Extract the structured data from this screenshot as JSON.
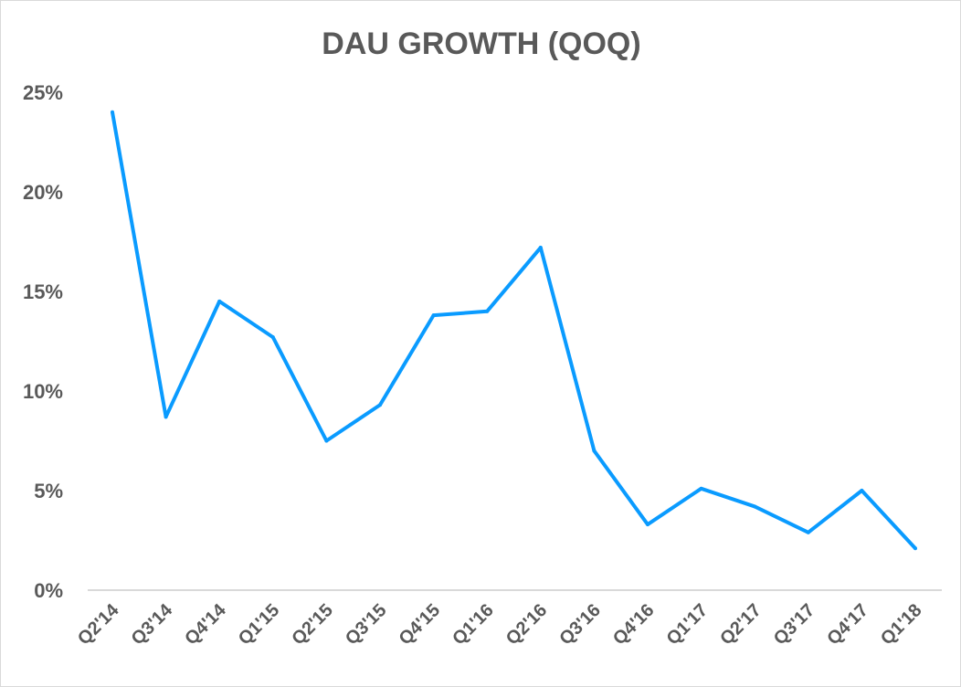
{
  "chart_data": {
    "type": "line",
    "title": "DAU GROWTH (QOQ)",
    "xlabel": "",
    "ylabel": "",
    "categories": [
      "Q2'14",
      "Q3'14",
      "Q4'14",
      "Q1'15",
      "Q2'15",
      "Q3'15",
      "Q4'15",
      "Q1'16",
      "Q2'16",
      "Q3'16",
      "Q4'16",
      "Q1'17",
      "Q2'17",
      "Q3'17",
      "Q4'17",
      "Q1'18"
    ],
    "series": [
      {
        "values": [
          24.0,
          8.7,
          14.5,
          12.7,
          7.5,
          9.3,
          13.8,
          14.0,
          17.2,
          7.0,
          3.3,
          5.1,
          4.2,
          2.9,
          5.0,
          2.1
        ],
        "color": "#0a9bff"
      }
    ],
    "ylim": [
      0,
      25
    ],
    "yticks": [
      0,
      5,
      10,
      15,
      20,
      25
    ],
    "ytick_labels": [
      "0%",
      "5%",
      "10%",
      "15%",
      "20%",
      "25%"
    ],
    "grid": false,
    "legend": "none"
  }
}
